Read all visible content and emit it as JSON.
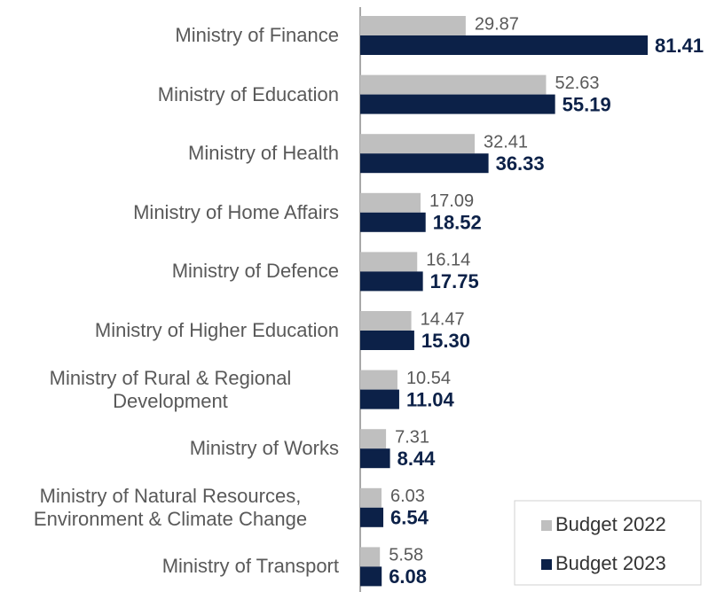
{
  "chart_data": {
    "type": "bar",
    "orientation": "horizontal",
    "categories": [
      "Ministry of Finance",
      "Ministry of Education",
      "Ministry of Health",
      "Ministry of Home Affairs",
      "Ministry of Defence",
      "Ministry of Higher Education",
      "Ministry of Rural & Regional Development",
      "Ministry of Works",
      "Ministry of Natural Resources, Environment & Climate Change",
      "Ministry of Transport"
    ],
    "series": [
      {
        "name": "Budget 2022",
        "color": "#bfbfbf",
        "values": [
          29.87,
          52.63,
          32.41,
          17.09,
          16.14,
          14.47,
          10.54,
          7.31,
          6.03,
          5.58
        ]
      },
      {
        "name": "Budget 2023",
        "color": "#0c2148",
        "values": [
          81.41,
          55.19,
          36.33,
          18.52,
          17.75,
          15.3,
          11.04,
          8.44,
          6.54,
          6.08
        ],
        "value_labels": [
          "81.41",
          "55.19",
          "36.33",
          "18.52",
          "17.75",
          "15.30",
          "11.04",
          "8.44",
          "6.54",
          "6.08"
        ]
      }
    ],
    "xlim": [
      0,
      100
    ],
    "legend": "lower right"
  }
}
